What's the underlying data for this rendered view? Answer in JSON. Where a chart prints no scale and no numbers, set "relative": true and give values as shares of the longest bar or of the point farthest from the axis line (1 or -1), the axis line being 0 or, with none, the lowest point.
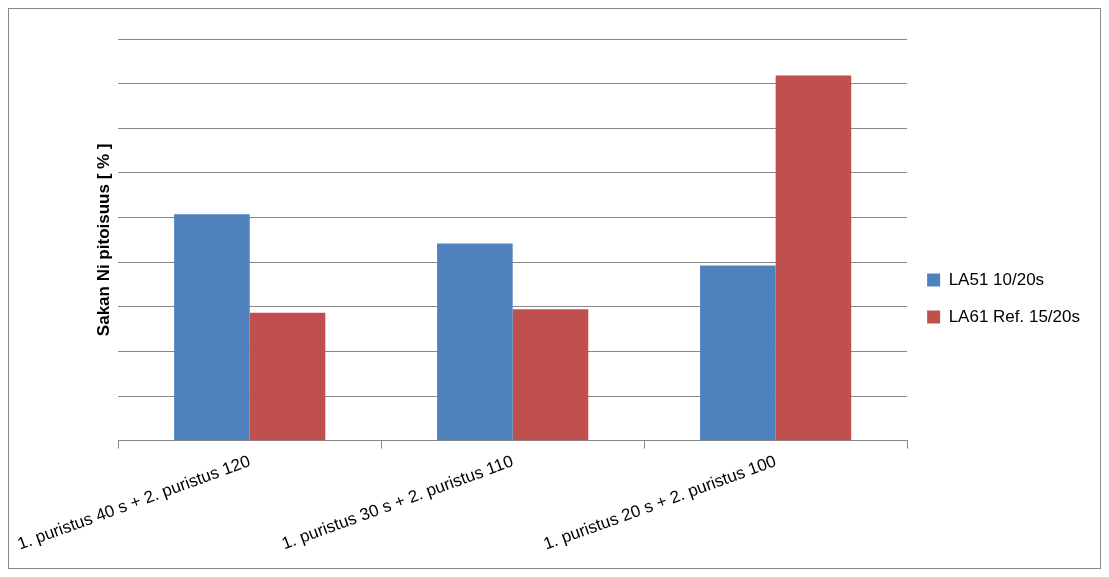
{
  "chart_data": {
    "type": "bar",
    "ylabel": "Sakan Ni pitoisuus [ % ]",
    "relative": true,
    "grid": "y",
    "legend": "right",
    "categories": [
      "1. puristus 40 s + 2. puristus 120",
      "1. puristus 30 s + 2. puristus 110",
      "1. puristus 20 s + 2. puristus 100"
    ],
    "series": [
      {
        "name": "LA51 10/20s",
        "color": "#4f81bd",
        "values": [
          0.62,
          0.54,
          0.48
        ]
      },
      {
        "name": "LA61 Ref. 15/20s",
        "color": "#c0504d",
        "values": [
          0.35,
          0.36,
          1
        ]
      }
    ]
  }
}
